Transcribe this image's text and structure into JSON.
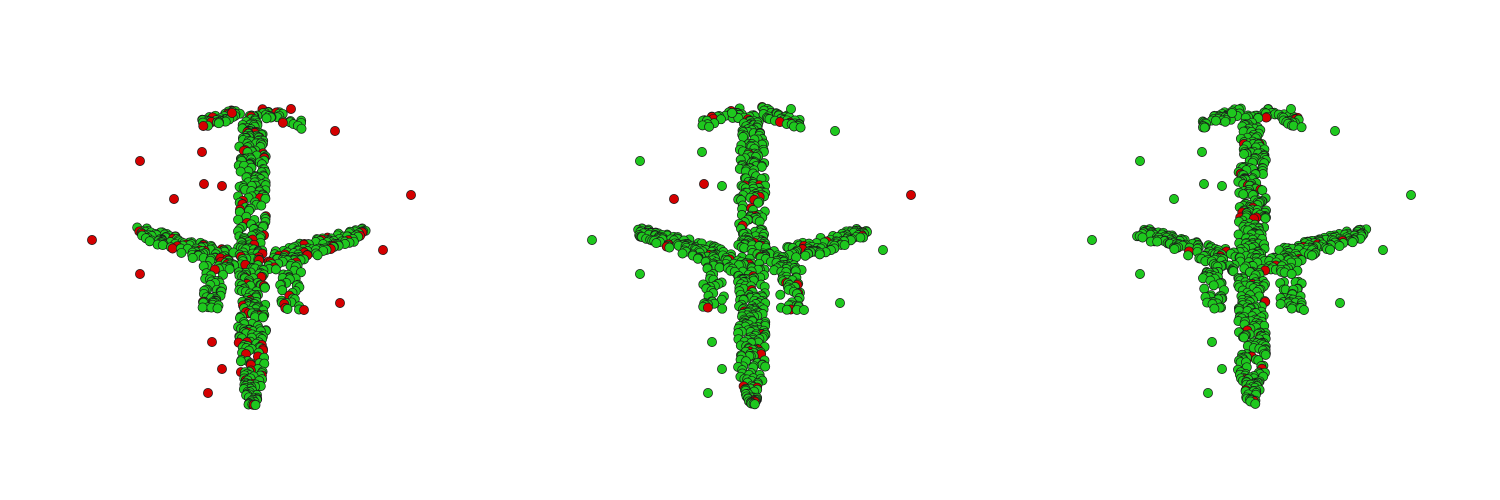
{
  "colors": {
    "background": "#ffffff",
    "inlier": "#1ec81e",
    "outlier": "#d40000",
    "stroke": "#1a1a1a"
  },
  "panels": [
    {
      "label": "",
      "inlier_fraction": 0.85
    },
    {
      "label": "",
      "inlier_fraction": 0.93
    },
    {
      "label": "",
      "inlier_fraction": 0.96
    }
  ]
}
